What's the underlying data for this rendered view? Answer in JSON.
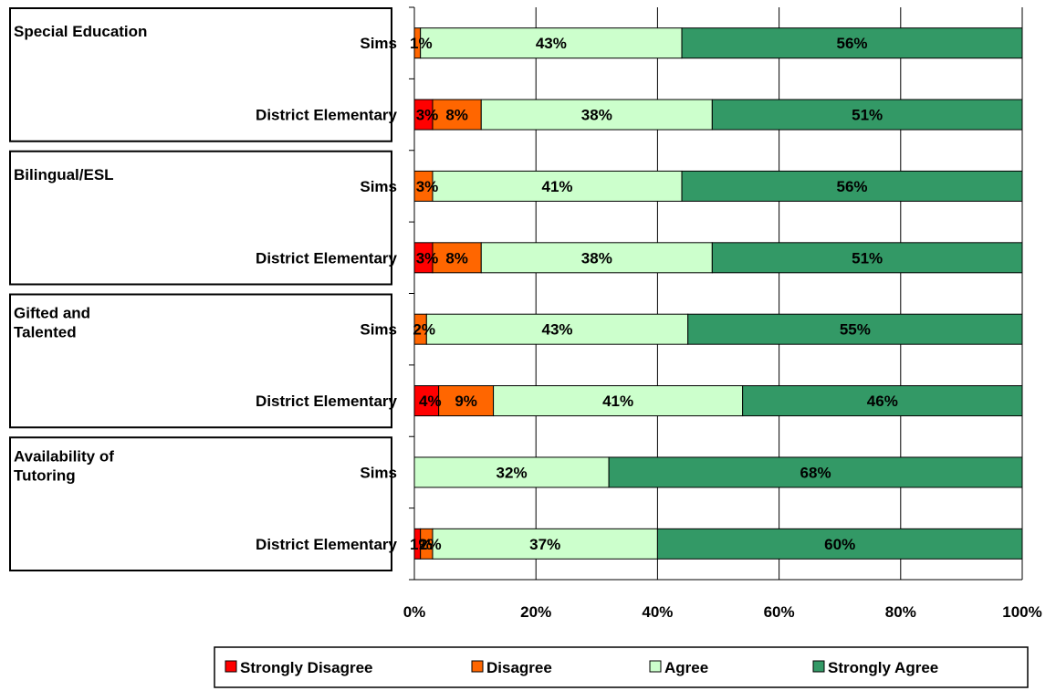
{
  "chart_data": {
    "type": "bar",
    "orientation": "horizontal",
    "stacked": "percent",
    "groups": [
      {
        "label": "Special Education",
        "rows": [
          {
            "label": "Sims",
            "values": [
              0,
              1,
              43,
              56
            ],
            "labels": [
              "",
              "1%",
              "43%",
              "56%"
            ]
          },
          {
            "label": "District Elementary",
            "values": [
              3,
              8,
              38,
              51
            ],
            "labels": [
              "3%",
              "8%",
              "38%",
              "51%"
            ]
          }
        ]
      },
      {
        "label": "Bilingual/ESL",
        "rows": [
          {
            "label": "Sims",
            "values": [
              0,
              3,
              41,
              56
            ],
            "labels": [
              "",
              "3%",
              "41%",
              "56%"
            ]
          },
          {
            "label": "District Elementary",
            "values": [
              3,
              8,
              38,
              51
            ],
            "labels": [
              "3%",
              "8%",
              "38%",
              "51%"
            ]
          }
        ]
      },
      {
        "label": "Gifted and Talented",
        "rows": [
          {
            "label": "Sims",
            "values": [
              0,
              2,
              43,
              55
            ],
            "labels": [
              "",
              "2%",
              "43%",
              "55%"
            ]
          },
          {
            "label": "District Elementary",
            "values": [
              4,
              9,
              41,
              46
            ],
            "labels": [
              "4%",
              "9%",
              "41%",
              "46%"
            ]
          }
        ]
      },
      {
        "label": "Availability of Tutoring",
        "rows": [
          {
            "label": "Sims",
            "values": [
              0,
              0,
              32,
              68
            ],
            "labels": [
              "",
              "",
              "32%",
              "68%"
            ]
          },
          {
            "label": "District Elementary",
            "values": [
              1,
              2,
              37,
              60
            ],
            "labels": [
              "1%",
              "2%",
              "37%",
              "60%"
            ]
          }
        ]
      }
    ],
    "series": [
      {
        "name": "Strongly Disagree",
        "color": "#ff0000"
      },
      {
        "name": "Disagree",
        "color": "#ff6600"
      },
      {
        "name": "Agree",
        "color": "#ccffcc"
      },
      {
        "name": "Strongly Agree",
        "color": "#339966"
      }
    ],
    "xlim": [
      0,
      100
    ],
    "xticks": [
      "0%",
      "20%",
      "40%",
      "60%",
      "80%",
      "100%"
    ],
    "grid": true,
    "legend_position": "bottom"
  }
}
